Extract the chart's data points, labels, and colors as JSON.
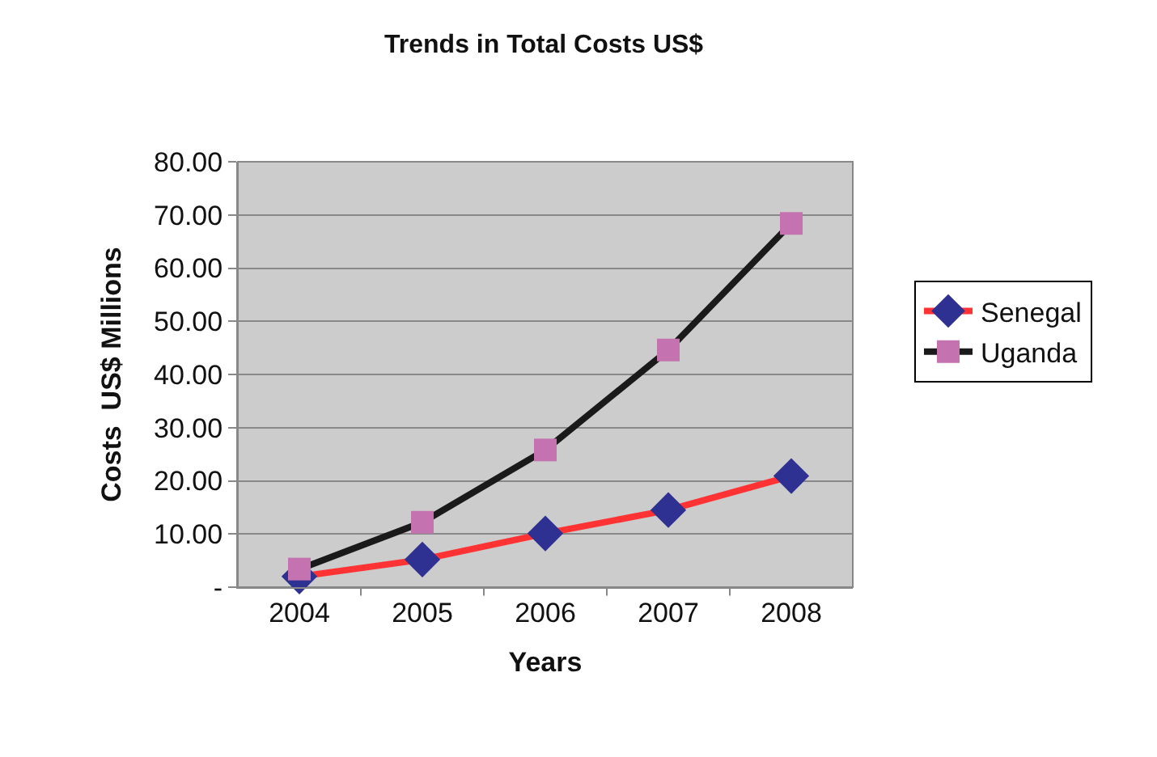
{
  "chart_data": {
    "type": "line",
    "title": "Trends in Total Costs US$",
    "xlabel": "Years",
    "ylabel": "Costs  US$ Millions",
    "categories": [
      "2004",
      "2005",
      "2006",
      "2007",
      "2008"
    ],
    "series": [
      {
        "name": "Senegal",
        "color": "#ff3333",
        "colors": [
          "#2e3192",
          "#2e3192",
          "#2e3192",
          "#2e3192",
          "#2e3192"
        ],
        "marker": "diamond",
        "values": [
          2.0,
          5.2,
          10.1,
          14.5,
          20.9
        ]
      },
      {
        "name": "Uganda",
        "color": "#1a1a1a",
        "colors": [
          "#c473b0",
          "#c473b0",
          "#c473b0",
          "#c473b0",
          "#c473b0"
        ],
        "marker": "square",
        "values": [
          3.4,
          12.2,
          25.8,
          44.6,
          68.4
        ]
      }
    ],
    "ylim": [
      0,
      80
    ],
    "yticks": [
      {
        "value": 0,
        "label": "-"
      },
      {
        "value": 10,
        "label": "10.00"
      },
      {
        "value": 20,
        "label": "20.00"
      },
      {
        "value": 30,
        "label": "30.00"
      },
      {
        "value": 40,
        "label": "40.00"
      },
      {
        "value": 50,
        "label": "50.00"
      },
      {
        "value": 60,
        "label": "60.00"
      },
      {
        "value": 70,
        "label": "70.00"
      },
      {
        "value": 80,
        "label": "80.00"
      }
    ],
    "grid": "y",
    "legend": "right",
    "line_style": "solid"
  }
}
